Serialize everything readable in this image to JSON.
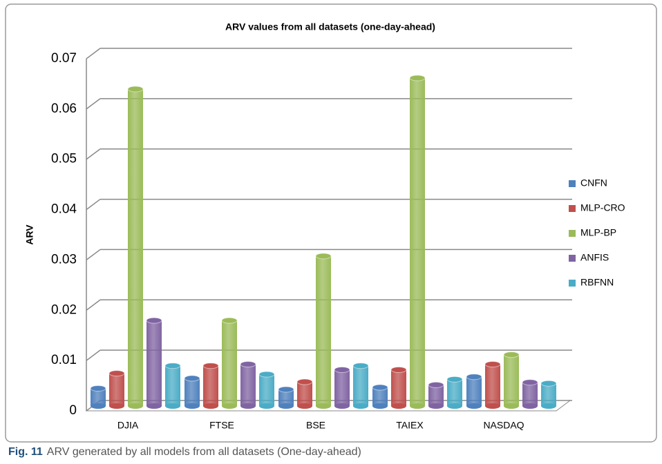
{
  "chart_data": {
    "type": "bar3d",
    "title": "ARV values from all datasets (one-day-ahead)",
    "y_label": "ARV",
    "categories": [
      "DJIA",
      "FTSE",
      "BSE",
      "TAIEX",
      "NASDAQ"
    ],
    "series": [
      {
        "name": "CNFN",
        "color": "#4f81bd",
        "values": [
          0.0035,
          0.0055,
          0.0033,
          0.0037,
          0.0058
        ]
      },
      {
        "name": "MLP-CRO",
        "color": "#c0504d",
        "values": [
          0.0065,
          0.008,
          0.0048,
          0.0072,
          0.0083
        ]
      },
      {
        "name": "MLP-BP",
        "color": "#9bbb59",
        "values": [
          0.063,
          0.017,
          0.0298,
          0.0652,
          0.0102
        ]
      },
      {
        "name": "ANFIS",
        "color": "#8064a2",
        "values": [
          0.017,
          0.0083,
          0.0072,
          0.0042,
          0.0047
        ]
      },
      {
        "name": "RBFNN",
        "color": "#4bacc6",
        "values": [
          0.008,
          0.0063,
          0.008,
          0.0053,
          0.0045
        ]
      }
    ],
    "ylim": [
      0,
      0.07
    ],
    "yticks": [
      0,
      0.01,
      0.02,
      0.03,
      0.04,
      0.05,
      0.06,
      0.07
    ],
    "grid": true,
    "legend": "right"
  },
  "caption": {
    "label": "Fig. 11",
    "text": "ARV generated by all models from all datasets (One-day-ahead)"
  }
}
